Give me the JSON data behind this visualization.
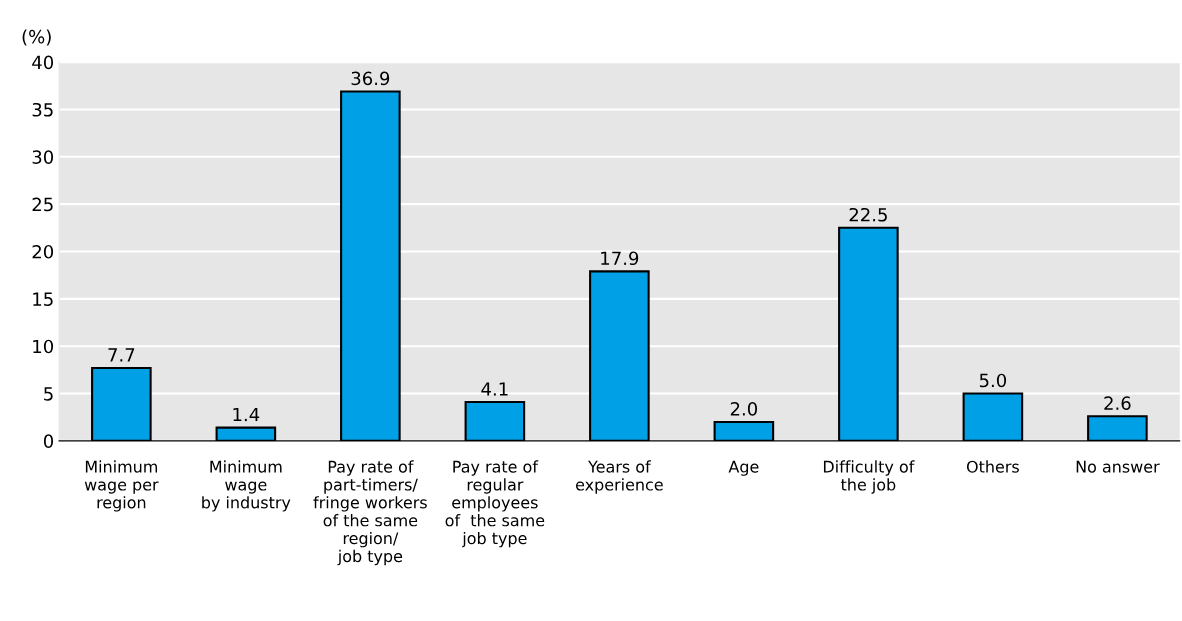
{
  "chart_data": {
    "type": "bar",
    "ylabel": "(%)",
    "categories": [
      "Minimum\nwage per\nregion",
      "Minimum\nwage\nby industry",
      "Pay rate of\npart-timers/\nfringe workers\nof the same\nregion/\njob type",
      "Pay rate of\nregular\nemployees\nof  the same\njob type",
      "Years of\nexperience",
      "Age",
      "Difficulty of\nthe job",
      "Others",
      "No answer"
    ],
    "values": [
      7.7,
      1.4,
      36.9,
      4.1,
      17.9,
      2.0,
      22.5,
      5.0,
      2.6
    ],
    "value_labels": [
      "7.7",
      "1.4",
      "36.9",
      "4.1",
      "17.9",
      "2.0",
      "22.5",
      "5.0",
      "2.6"
    ],
    "color": "#00a0e6",
    "ylim": [
      0,
      40
    ],
    "yticks": [
      0,
      5,
      10,
      15,
      20,
      25,
      30,
      35,
      40
    ],
    "grid": "y",
    "legend": false
  }
}
